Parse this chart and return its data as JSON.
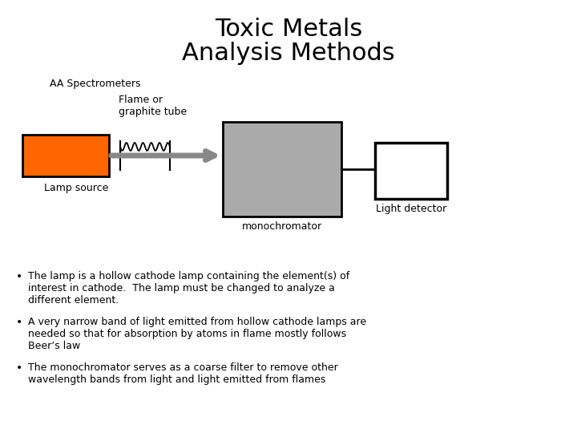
{
  "title_line1": "Toxic Metals",
  "title_line2": "Analysis Methods",
  "title_fontsize": 22,
  "bg_color": "#ffffff",
  "aa_label": "AA Spectrometers",
  "flame_label": "Flame or\ngraphite tube",
  "lamp_label": "Lamp source",
  "mono_label": "monochromator",
  "detector_label": "Light detector",
  "lamp_color": "#FF6600",
  "mono_color": "#AAAAAA",
  "detector_color": "#ffffff",
  "arrow_color": "#888888",
  "text_color": "#000000",
  "bullet1": "The lamp is a hollow cathode lamp containing the element(s) of\ninterest in cathode.  The lamp must be changed to analyze a\ndifferent element.",
  "bullet2": "A very narrow band of light emitted from hollow cathode lamps are\nneeded so that for absorption by atoms in flame mostly follows\nBeer’s law",
  "bullet3": "The monochromator serves as a coarse filter to remove other\nwavelength bands from light and light emitted from flames",
  "diagram_font": 9,
  "bullet_font": 9
}
